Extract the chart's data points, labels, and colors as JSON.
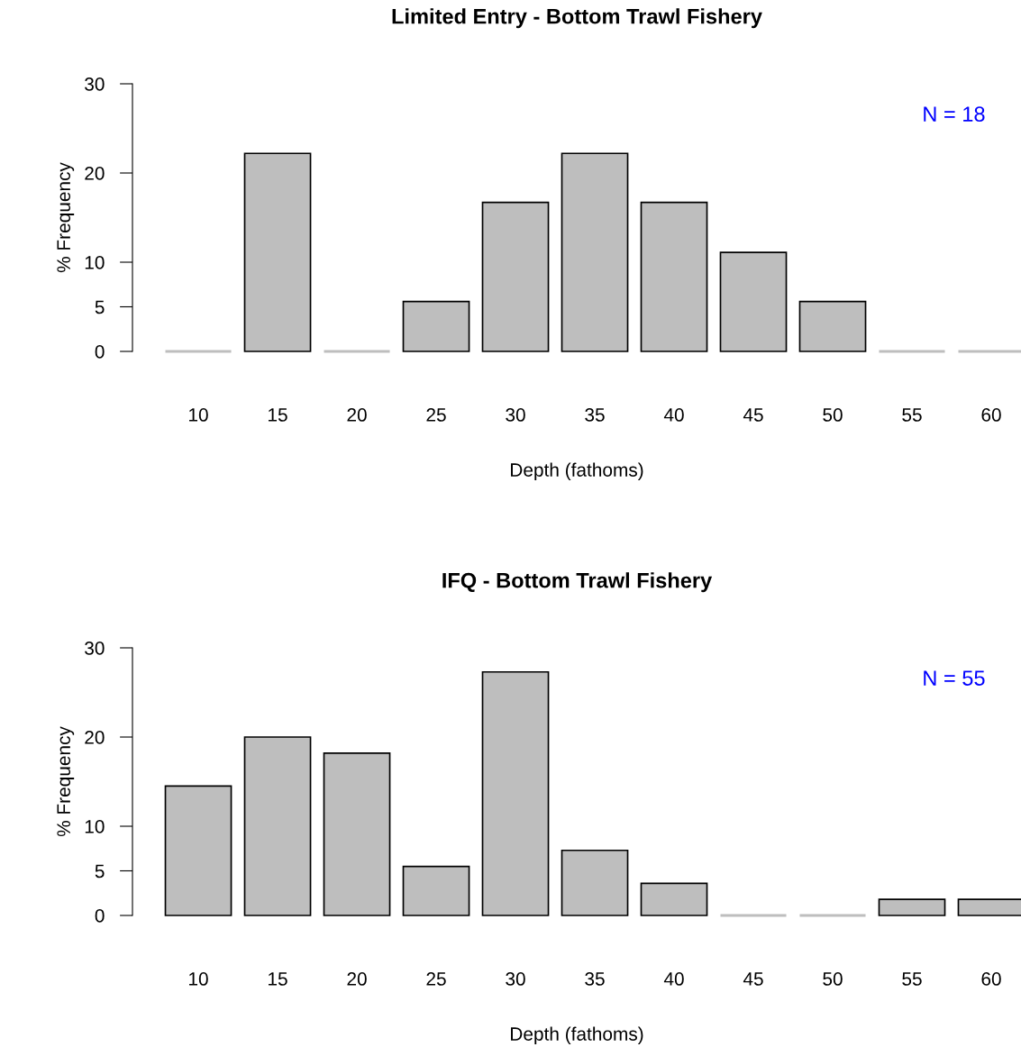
{
  "chart_data": [
    {
      "type": "bar",
      "title": "Limited Entry - Bottom Trawl Fishery",
      "xlabel": "Depth (fathoms)",
      "ylabel": "% Frequency",
      "categories": [
        "10",
        "15",
        "20",
        "25",
        "30",
        "35",
        "40",
        "45",
        "50",
        "55",
        "60"
      ],
      "values": [
        0,
        22.2,
        0,
        5.6,
        16.7,
        22.2,
        16.7,
        11.1,
        5.6,
        0,
        0
      ],
      "color": "#bebebe",
      "ylim": [
        0,
        30
      ],
      "yticks": [
        0,
        5,
        10,
        20,
        30
      ],
      "annotations": [
        "N = 18"
      ],
      "grid": false,
      "legend": false
    },
    {
      "type": "bar",
      "title": "IFQ - Bottom Trawl Fishery",
      "xlabel": "Depth (fathoms)",
      "ylabel": "% Frequency",
      "categories": [
        "10",
        "15",
        "20",
        "25",
        "30",
        "35",
        "40",
        "45",
        "50",
        "55",
        "60"
      ],
      "values": [
        14.5,
        20.0,
        18.2,
        5.5,
        27.3,
        7.3,
        3.6,
        0,
        0,
        1.8,
        1.8
      ],
      "color": "#bebebe",
      "ylim": [
        0,
        30
      ],
      "yticks": [
        0,
        5,
        10,
        20,
        30
      ],
      "annotations": [
        "N = 55"
      ],
      "grid": false,
      "legend": false
    }
  ]
}
